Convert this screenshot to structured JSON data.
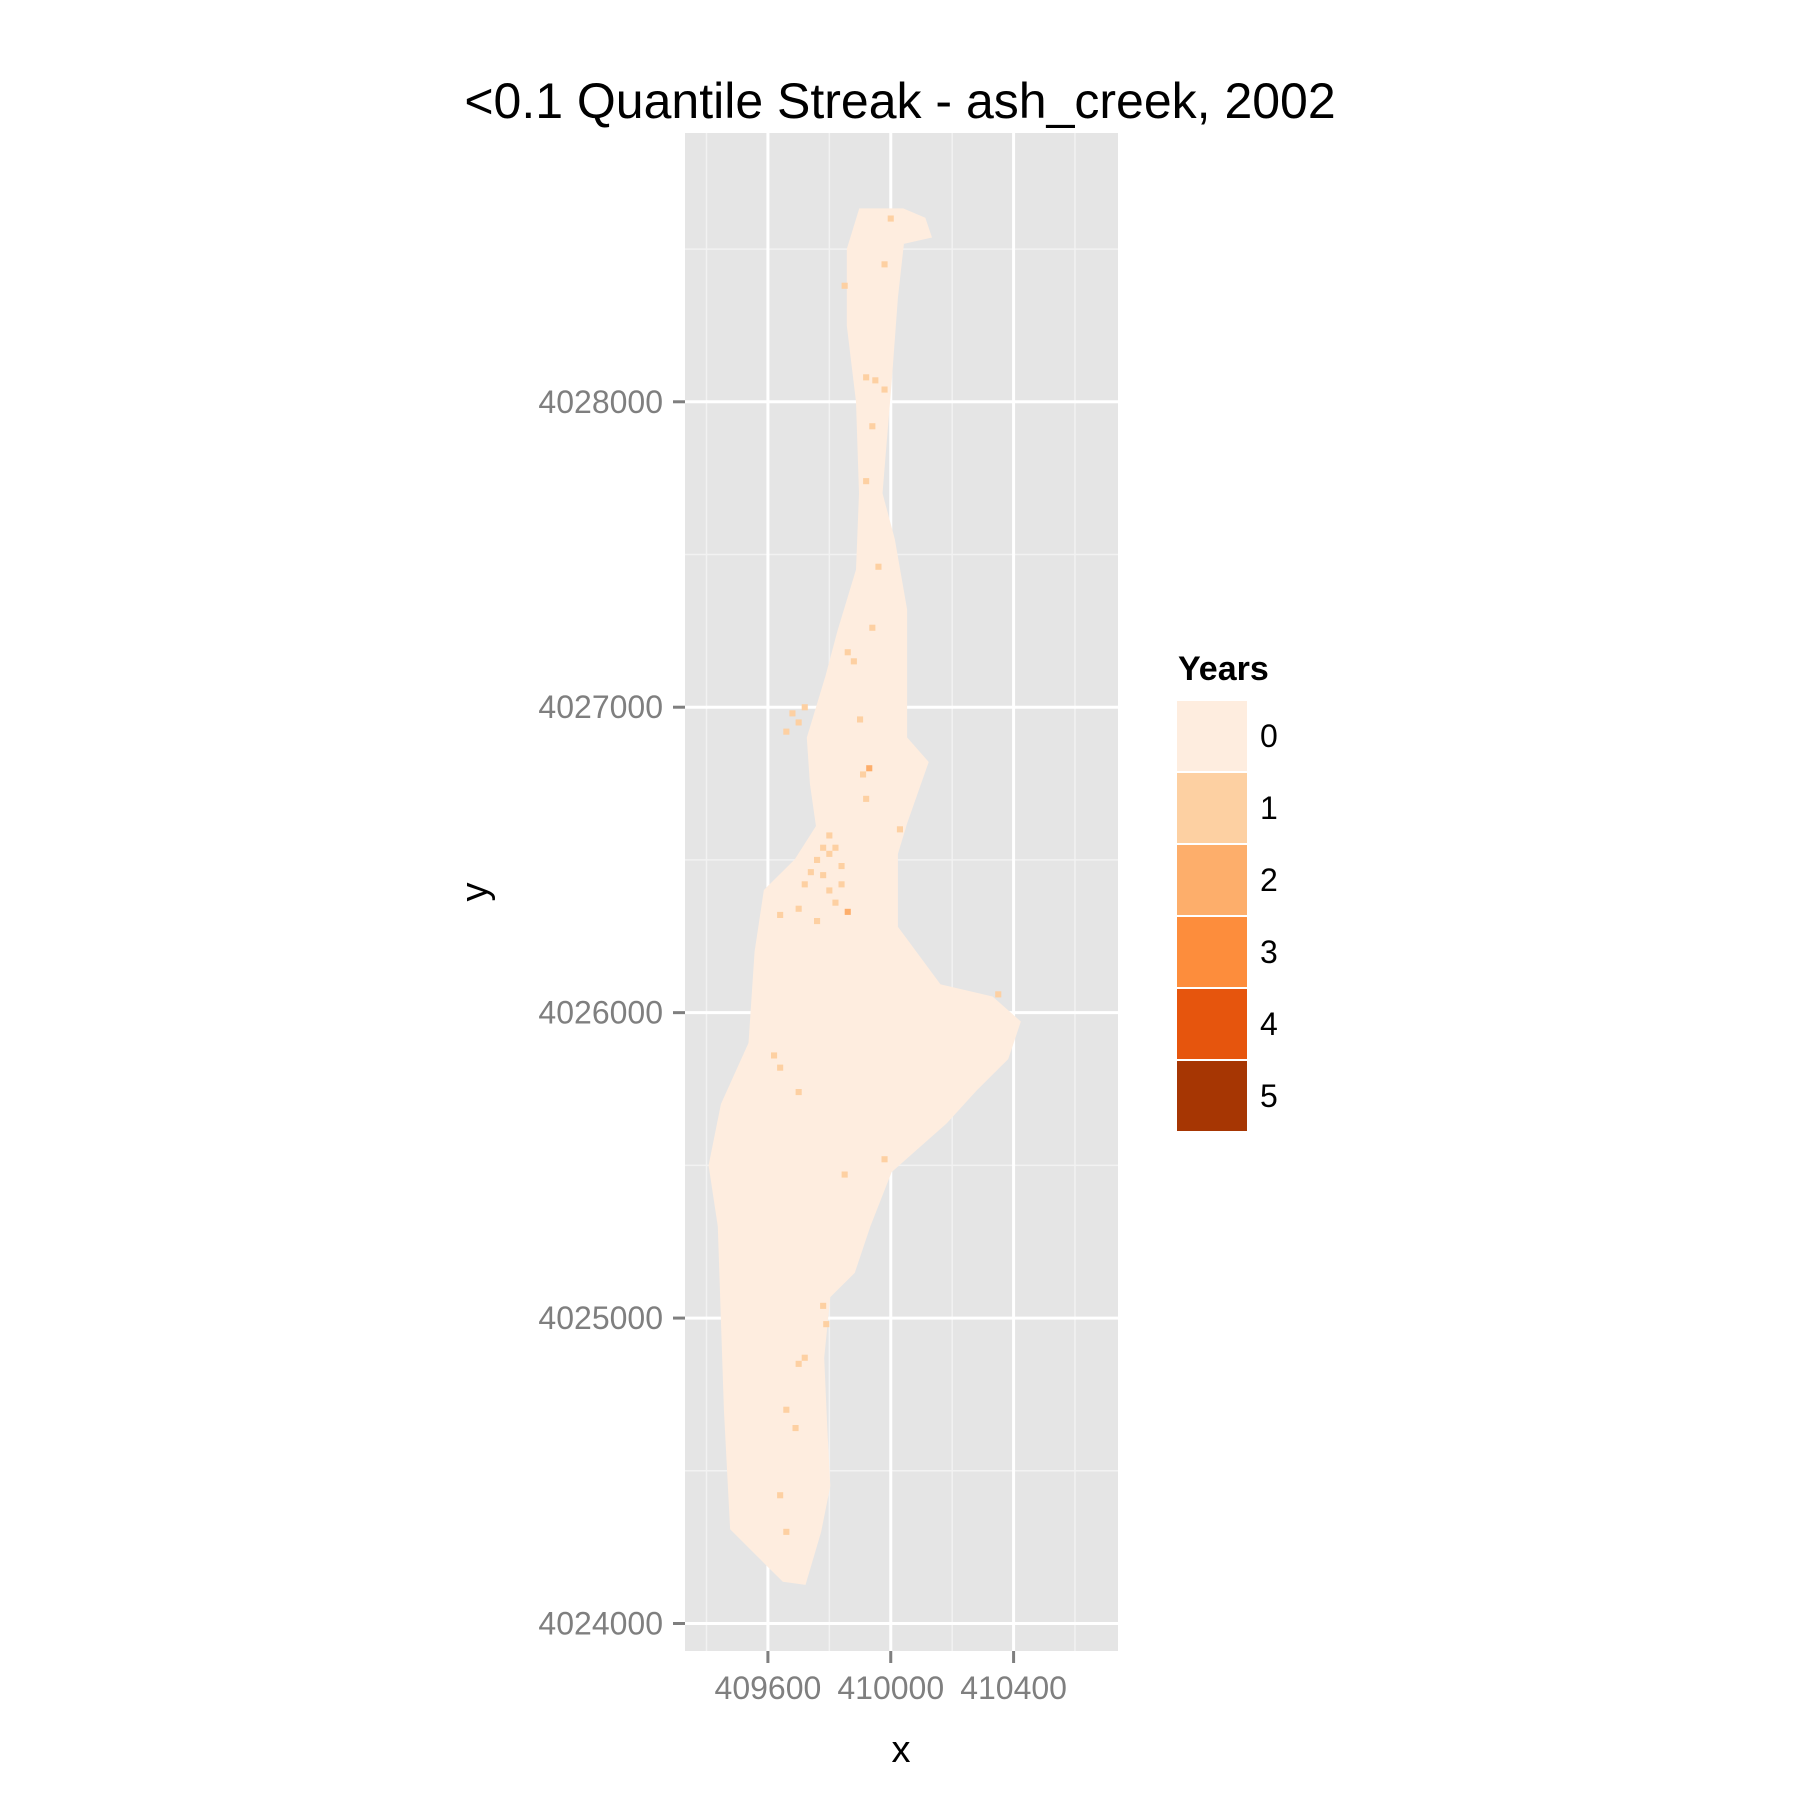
{
  "chart_data": {
    "type": "heatmap",
    "title": "<0.1 Quantile Streak - ash_creek, 2002",
    "xlabel": "x",
    "ylabel": "y",
    "xlim": [
      409330,
      410740
    ],
    "ylim": [
      4023910,
      4028880
    ],
    "x_ticks": [
      409600,
      410000,
      410400
    ],
    "x_tick_labels": [
      "409600",
      "410000",
      "410400"
    ],
    "y_ticks": [
      4024000,
      4025000,
      4026000,
      4027000,
      4028000
    ],
    "y_tick_labels": [
      "4024000",
      "4025000",
      "4026000",
      "4027000",
      "4028000"
    ],
    "grid": true,
    "legend": {
      "title": "Years",
      "position": "right",
      "levels": [
        {
          "label": "0",
          "value": 0,
          "color": "#feeddf"
        },
        {
          "label": "1",
          "value": 1,
          "color": "#fdd0a2"
        },
        {
          "label": "2",
          "value": 2,
          "color": "#fdae6b"
        },
        {
          "label": "3",
          "value": 3,
          "color": "#fd8d3c"
        },
        {
          "label": "4",
          "value": 4,
          "color": "#e6550d"
        },
        {
          "label": "5",
          "value": 5,
          "color": "#a63603"
        }
      ]
    },
    "region_outline": [
      [
        409900,
        4028630
      ],
      [
        410040,
        4028630
      ],
      [
        410110,
        4028600
      ],
      [
        410130,
        4028540
      ],
      [
        410040,
        4028520
      ],
      [
        410020,
        4028340
      ],
      [
        410000,
        4028070
      ],
      [
        409970,
        4027700
      ],
      [
        410010,
        4027550
      ],
      [
        410050,
        4027320
      ],
      [
        410050,
        4026900
      ],
      [
        410120,
        4026820
      ],
      [
        410050,
        4026620
      ],
      [
        410020,
        4026520
      ],
      [
        410020,
        4026280
      ],
      [
        410160,
        4026090
      ],
      [
        410330,
        4026050
      ],
      [
        410420,
        4025970
      ],
      [
        410380,
        4025850
      ],
      [
        410280,
        4025750
      ],
      [
        410180,
        4025640
      ],
      [
        410000,
        4025480
      ],
      [
        409930,
        4025300
      ],
      [
        409880,
        4025150
      ],
      [
        409800,
        4025070
      ],
      [
        409780,
        4024870
      ],
      [
        409790,
        4024640
      ],
      [
        409800,
        4024450
      ],
      [
        409770,
        4024300
      ],
      [
        409720,
        4024130
      ],
      [
        409650,
        4024140
      ],
      [
        409560,
        4024230
      ],
      [
        409480,
        4024310
      ],
      [
        409460,
        4024700
      ],
      [
        409440,
        4025300
      ],
      [
        409410,
        4025500
      ],
      [
        409450,
        4025700
      ],
      [
        409540,
        4025900
      ],
      [
        409560,
        4026200
      ],
      [
        409590,
        4026400
      ],
      [
        409690,
        4026500
      ],
      [
        409760,
        4026610
      ],
      [
        409740,
        4026750
      ],
      [
        409730,
        4026900
      ],
      [
        409790,
        4027100
      ],
      [
        409830,
        4027250
      ],
      [
        409890,
        4027450
      ],
      [
        409900,
        4027700
      ],
      [
        409890,
        4028000
      ],
      [
        409860,
        4028250
      ],
      [
        409860,
        4028500
      ]
    ],
    "cells": [
      [
        409780,
        4026540,
        1
      ],
      [
        409800,
        4026520,
        1
      ],
      [
        409820,
        4026540,
        1
      ],
      [
        409760,
        4026500,
        1
      ],
      [
        409740,
        4026460,
        1
      ],
      [
        409780,
        4026450,
        1
      ],
      [
        409840,
        4026480,
        1
      ],
      [
        409720,
        4026420,
        1
      ],
      [
        409800,
        4026400,
        1
      ],
      [
        409820,
        4026360,
        1
      ],
      [
        409760,
        4026300,
        1
      ],
      [
        409700,
        4026340,
        1
      ],
      [
        409860,
        4026330,
        2
      ],
      [
        409640,
        4026320,
        1
      ],
      [
        409840,
        4026420,
        1
      ],
      [
        409800,
        4026580,
        1
      ],
      [
        409680,
        4026980,
        1
      ],
      [
        409700,
        4026950,
        1
      ],
      [
        409720,
        4027000,
        1
      ],
      [
        409660,
        4026920,
        1
      ],
      [
        409910,
        4026780,
        1
      ],
      [
        409930,
        4026800,
        2
      ],
      [
        409920,
        4026700,
        1
      ],
      [
        409900,
        4026960,
        1
      ],
      [
        409880,
        4027150,
        1
      ],
      [
        409860,
        4027180,
        1
      ],
      [
        409940,
        4027260,
        1
      ],
      [
        409960,
        4027460,
        1
      ],
      [
        409920,
        4027740,
        1
      ],
      [
        409940,
        4027920,
        1
      ],
      [
        409920,
        4028080,
        1
      ],
      [
        409950,
        4028070,
        1
      ],
      [
        409980,
        4028040,
        1
      ],
      [
        409980,
        4028450,
        1
      ],
      [
        409850,
        4028380,
        1
      ],
      [
        410000,
        4028600,
        1
      ],
      [
        410030,
        4026600,
        1
      ],
      [
        410350,
        4026060,
        1
      ],
      [
        409620,
        4025860,
        1
      ],
      [
        409640,
        4025820,
        1
      ],
      [
        409700,
        4025740,
        1
      ],
      [
        409980,
        4025520,
        1
      ],
      [
        409850,
        4025470,
        1
      ],
      [
        409780,
        4025040,
        1
      ],
      [
        409790,
        4024980,
        1
      ],
      [
        409700,
        4024850,
        1
      ],
      [
        409720,
        4024870,
        1
      ],
      [
        409660,
        4024700,
        1
      ],
      [
        409690,
        4024640,
        1
      ],
      [
        409640,
        4024420,
        1
      ],
      [
        409660,
        4024300,
        1
      ]
    ]
  }
}
